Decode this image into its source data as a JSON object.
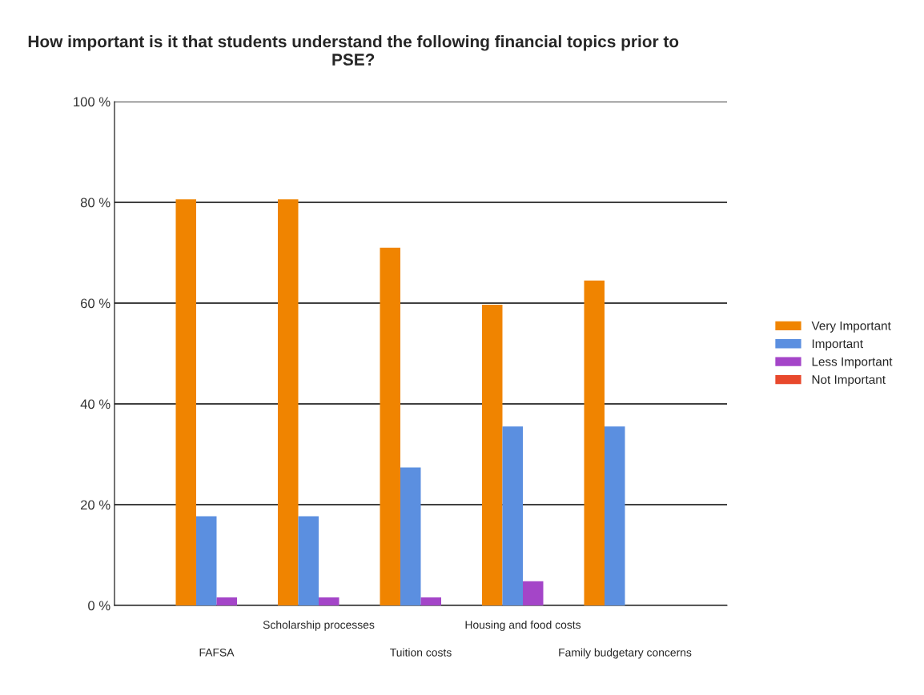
{
  "chart_data": {
    "type": "bar",
    "title": "How important is it that students understand the following financial topics prior to PSE?",
    "categories": [
      "FAFSA",
      "Scholarship processes",
      "Tuition costs",
      "Housing and food costs",
      "Family budgetary concerns"
    ],
    "series": [
      {
        "name": "Very Important",
        "color": "#f08400",
        "values": [
          80.6,
          80.6,
          71.0,
          59.7,
          64.5
        ]
      },
      {
        "name": "Important",
        "color": "#5b8fe0",
        "values": [
          17.7,
          17.7,
          27.4,
          35.5,
          35.5
        ]
      },
      {
        "name": "Less Important",
        "color": "#a445c8",
        "values": [
          1.6,
          1.6,
          1.6,
          4.8,
          0
        ]
      },
      {
        "name": "Not Important",
        "color": "#e8482c",
        "values": [
          0,
          0,
          0,
          0,
          0
        ]
      }
    ],
    "ylim": [
      0,
      100
    ],
    "yticks": [
      {
        "value": 0,
        "label": "0 %"
      },
      {
        "value": 20,
        "label": "20 %"
      },
      {
        "value": 40,
        "label": "40 %"
      },
      {
        "value": 60,
        "label": "60 %"
      },
      {
        "value": 80,
        "label": "80 %"
      },
      {
        "value": 100,
        "label": "100 %"
      }
    ],
    "grid": "y",
    "legend": "right"
  }
}
